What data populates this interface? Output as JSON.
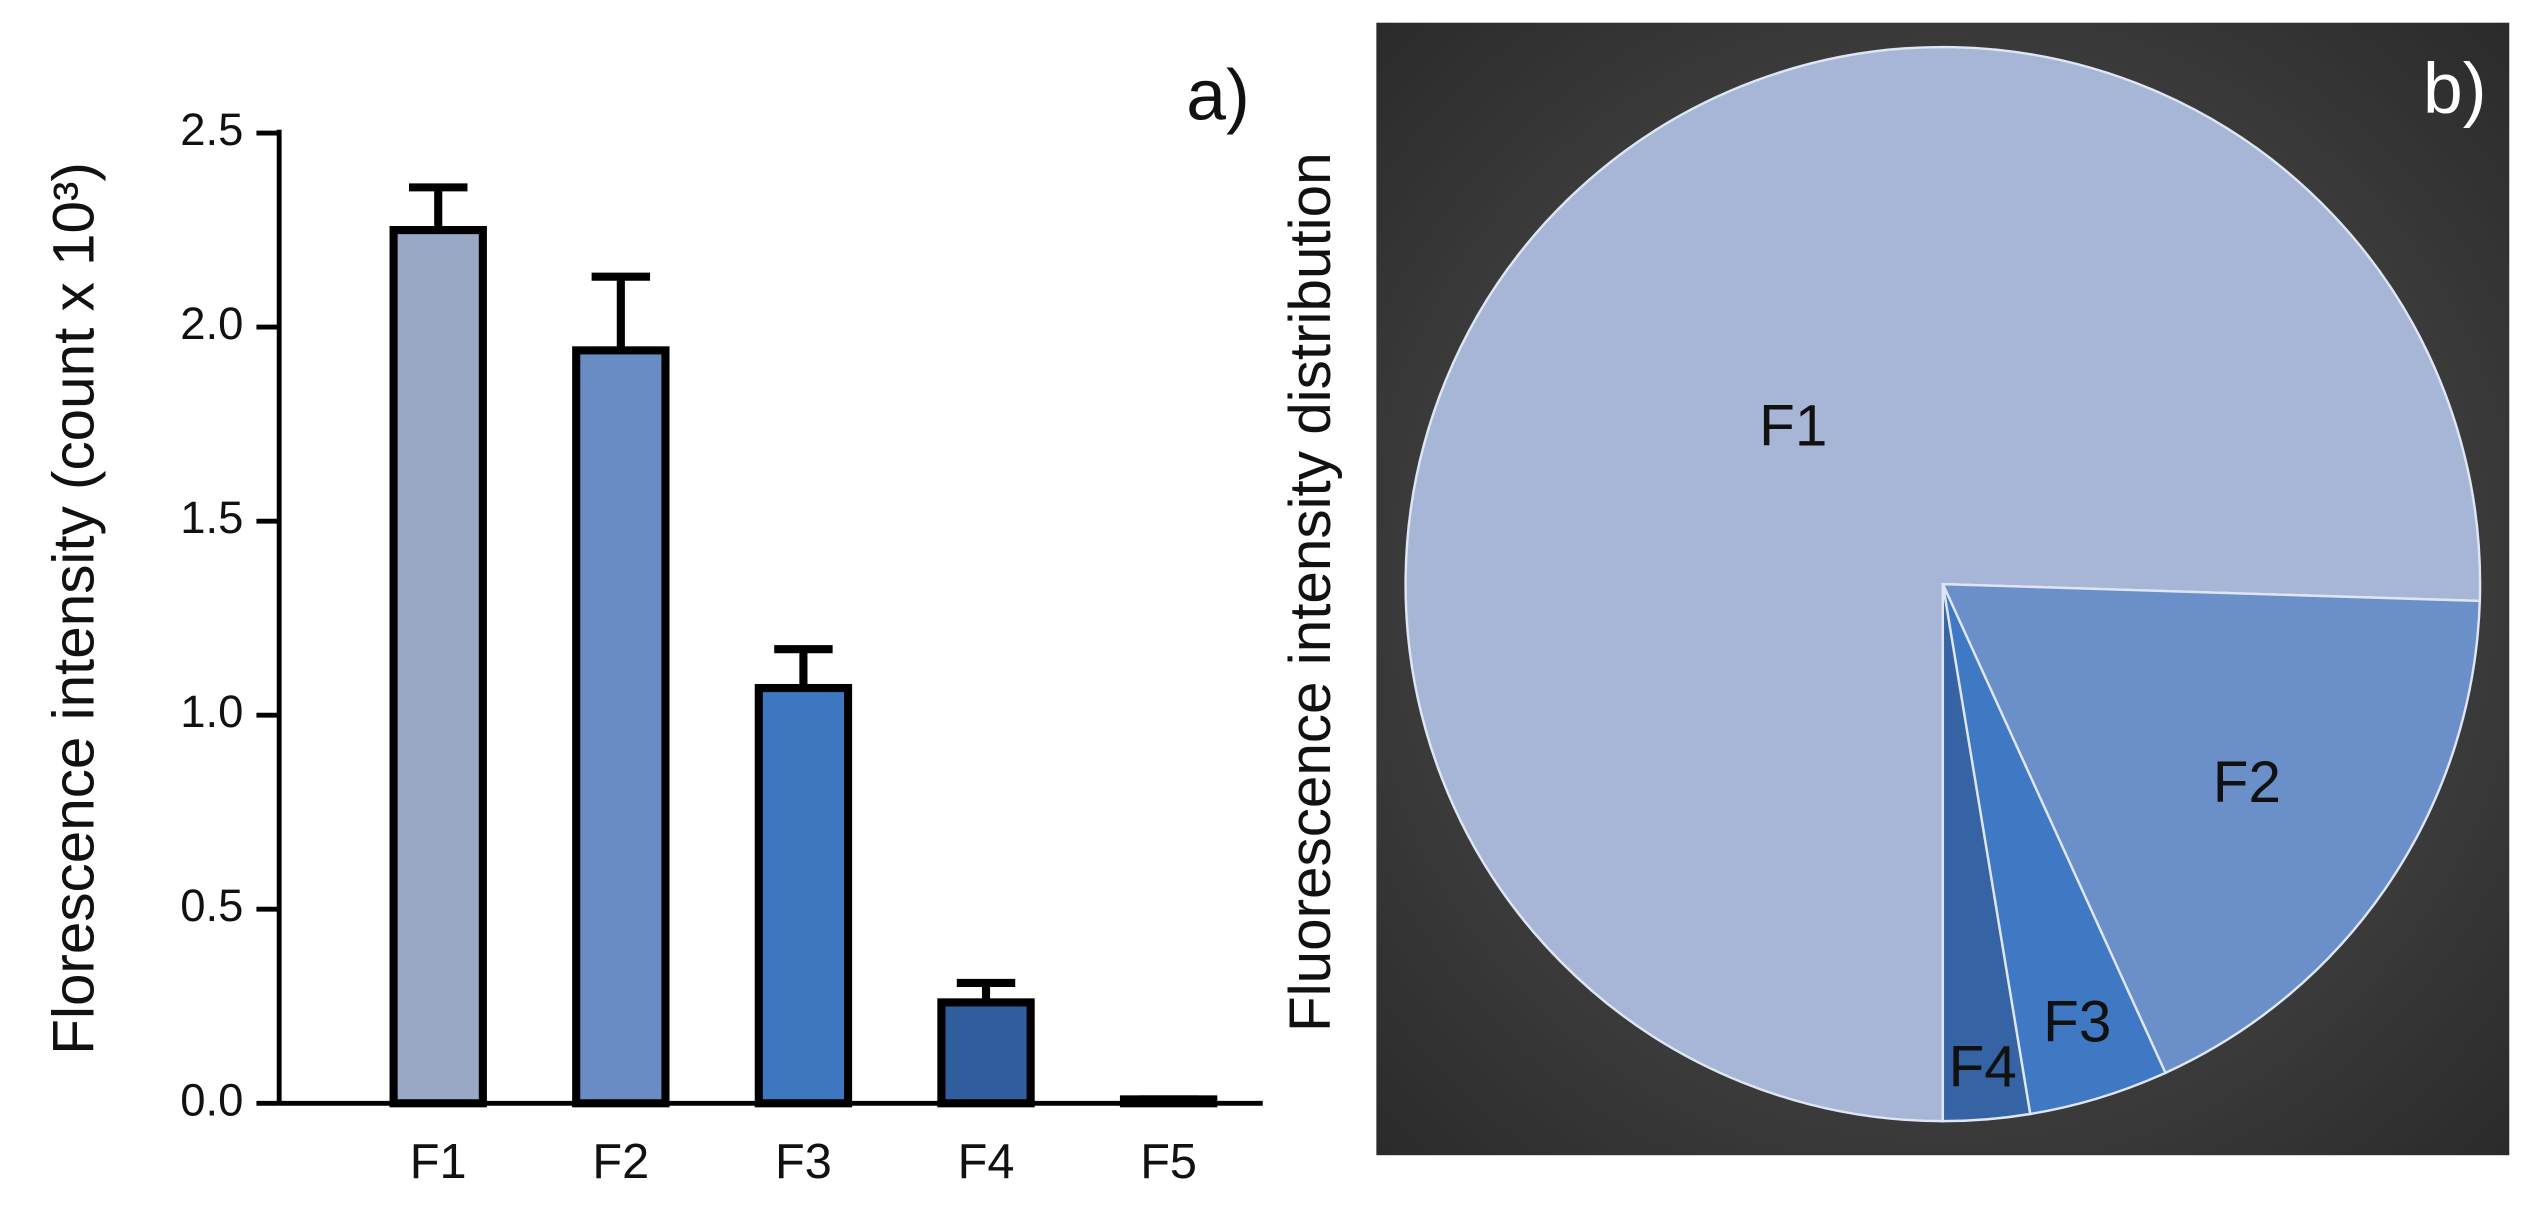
{
  "chart_data": [
    {
      "type": "bar",
      "annotation": "a)",
      "y_label": "Florescence intensity (count x 10³)",
      "categories": [
        "F1",
        "F2",
        "F3",
        "F4",
        "F5"
      ],
      "values": [
        2.25,
        1.94,
        1.07,
        0.26,
        0.01
      ],
      "errors": [
        0.11,
        0.19,
        0.1,
        0.05,
        0
      ],
      "colors": [
        "#98a8c5",
        "#6a8cc4",
        "#3c77c0",
        "#2f5d9e",
        "#2f5d9e"
      ],
      "ylim": [
        0,
        2.5
      ],
      "yticks": [
        {
          "value": 0,
          "label": "0.0"
        },
        0.5,
        {
          "value": 1,
          "label": "1.0"
        },
        1.5,
        {
          "value": 2,
          "label": "2.0"
        },
        2.5
      ]
    },
    {
      "type": "pie",
      "annotation": "b)",
      "y_label": "Fluorescence intensity distribution",
      "categories": [
        "F1",
        "F2",
        "F3",
        "F4"
      ],
      "values": [
        75.5,
        17.7,
        4.2,
        2.6
      ],
      "colors": [
        "#a7b6d6",
        "#6b8fc8",
        "#3f79c4",
        "#3563a3"
      ]
    }
  ]
}
